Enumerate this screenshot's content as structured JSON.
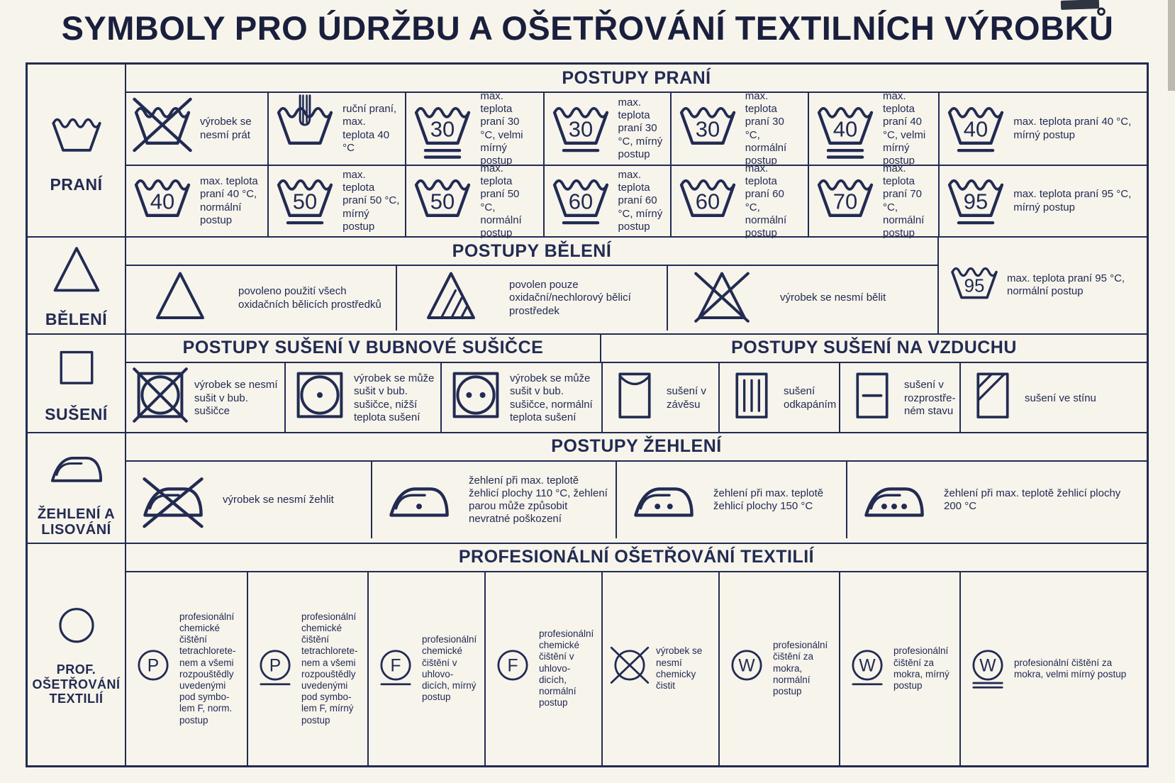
{
  "title": "SYMBOLY PRO ÚDRŽBU A OŠETŘOVÁNÍ TEXTILNÍCH VÝROBKŮ",
  "ink_color": "#222b52",
  "paper_color": "#f7f4ec",
  "categories": [
    {
      "label": "PRANÍ",
      "icon": "wash-tub-icon",
      "symbol": {
        "type": "tub"
      }
    },
    {
      "label": "BĚLENÍ",
      "icon": "triangle-icon",
      "symbol": {
        "type": "triangle",
        "variant": "plain"
      }
    },
    {
      "label": "SUŠENÍ",
      "icon": "square-icon",
      "symbol": {
        "type": "square",
        "variant": "plain"
      }
    },
    {
      "label": "ŽEHLENÍ A LISOVÁNÍ",
      "icon": "iron-icon",
      "symbol": {
        "type": "iron",
        "dots": 0
      }
    },
    {
      "label": "PROF. OŠETŘOVÁNÍ TEXTILIÍ",
      "icon": "circle-icon",
      "symbol": {
        "type": "circle"
      }
    }
  ],
  "washing": {
    "header": "POSTUPY PRANÍ",
    "rows": [
      [
        {
          "icon": "do-not-wash-icon",
          "symbol": {
            "type": "tub",
            "crossed": true
          },
          "text": "výrobek se nesmí prát"
        },
        {
          "icon": "hand-wash-icon",
          "symbol": {
            "type": "tub",
            "hand": true
          },
          "text": "ruční praní, max. teplota 40 °C"
        },
        {
          "icon": "wash-30-very-mild-icon",
          "symbol": {
            "type": "tub",
            "temp": "30",
            "bars": 2
          },
          "text": "max. teplota praní 30 °C, velmi mírný postup"
        },
        {
          "icon": "wash-30-mild-icon",
          "symbol": {
            "type": "tub",
            "temp": "30",
            "bars": 1
          },
          "text": "max. teplota praní 30 °C, mírný postup"
        },
        {
          "icon": "wash-30-normal-icon",
          "symbol": {
            "type": "tub",
            "temp": "30",
            "bars": 0
          },
          "text": "max. teplota praní 30 °C, normální postup"
        },
        {
          "icon": "wash-40-very-mild-icon",
          "symbol": {
            "type": "tub",
            "temp": "40",
            "bars": 2
          },
          "text": "max. teplota praní 40 °C, velmi mírný postup"
        },
        {
          "icon": "wash-40-mild-icon",
          "symbol": {
            "type": "tub",
            "temp": "40",
            "bars": 1
          },
          "text": "max. teplota praní 40 °C, mírný postup"
        }
      ],
      [
        {
          "icon": "wash-40-normal-icon",
          "symbol": {
            "type": "tub",
            "temp": "40",
            "bars": 0
          },
          "text": "max. teplota praní 40 °C, normální postup"
        },
        {
          "icon": "wash-50-mild-icon",
          "symbol": {
            "type": "tub",
            "temp": "50",
            "bars": 1
          },
          "text": "max. teplota praní 50 °C, mírný postup"
        },
        {
          "icon": "wash-50-normal-icon",
          "symbol": {
            "type": "tub",
            "temp": "50",
            "bars": 0
          },
          "text": "max. teplota praní 50 °C, normální postup"
        },
        {
          "icon": "wash-60-mild-icon",
          "symbol": {
            "type": "tub",
            "temp": "60",
            "bars": 1
          },
          "text": "max. teplota praní 60 °C, mírný postup"
        },
        {
          "icon": "wash-60-normal-icon",
          "symbol": {
            "type": "tub",
            "temp": "60",
            "bars": 0
          },
          "text": "max. teplota praní 60 °C, normální postup"
        },
        {
          "icon": "wash-70-normal-icon",
          "symbol": {
            "type": "tub",
            "temp": "70",
            "bars": 0
          },
          "text": "max. teplota praní 70 °C, normální postup"
        },
        {
          "icon": "wash-95-mild-icon",
          "symbol": {
            "type": "tub",
            "temp": "95",
            "bars": 1
          },
          "text": "max. teplota praní 95 °C, mírný postup"
        }
      ]
    ]
  },
  "bleaching": {
    "header": "POSTUPY BĚLENÍ",
    "cells": [
      {
        "icon": "bleach-allowed-icon",
        "symbol": {
          "type": "triangle",
          "variant": "plain"
        },
        "text": "povoleno použití všech oxidačních bělicích prostředků"
      },
      {
        "icon": "oxygen-bleach-only-icon",
        "symbol": {
          "type": "triangle",
          "variant": "hatched"
        },
        "text": "povolen pouze oxidační/nechlorový bělicí prostředek"
      },
      {
        "icon": "do-not-bleach-icon",
        "symbol": {
          "type": "triangle",
          "variant": "crossed"
        },
        "text": "výrobek se nesmí bělit"
      }
    ],
    "side_cell": {
      "icon": "wash-95-normal-icon",
      "symbol": {
        "type": "tub",
        "temp": "95",
        "bars": 0
      },
      "text": "max. teplota praní 95 °C, normální postup"
    }
  },
  "drying": {
    "header_tumble": "POSTUPY SUŠENÍ V BUBNOVÉ SUŠIČCE",
    "header_air": "POSTUPY SUŠENÍ NA VZDUCHU",
    "tumble_cells": [
      {
        "icon": "do-not-tumble-dry-icon",
        "symbol": {
          "type": "square-circle",
          "crossed": true
        },
        "text": "výrobek se nesmí sušit v bub. sušičce"
      },
      {
        "icon": "tumble-dry-low-heat-icon",
        "symbol": {
          "type": "square-circle",
          "dots": 1
        },
        "text": "výrobek se může sušit v bub. sušičce, nižší teplota sušení"
      },
      {
        "icon": "tumble-dry-normal-heat-icon",
        "symbol": {
          "type": "square-circle",
          "dots": 2
        },
        "text": "výrobek se může sušit v bub. sušičce, normální teplota sušení"
      }
    ],
    "air_cells": [
      {
        "icon": "line-dry-icon",
        "symbol": {
          "type": "square",
          "variant": "hang"
        },
        "text": "sušení v závěsu"
      },
      {
        "icon": "drip-dry-icon",
        "symbol": {
          "type": "square",
          "variant": "drip"
        },
        "text": "sušení odkapáním"
      },
      {
        "icon": "dry-flat-icon",
        "symbol": {
          "type": "square",
          "variant": "flat"
        },
        "text": "sušení v rozprostře-ném stavu"
      },
      {
        "icon": "dry-in-shade-icon",
        "symbol": {
          "type": "square",
          "variant": "shade"
        },
        "text": "sušení ve stínu"
      }
    ]
  },
  "ironing": {
    "header": "POSTUPY ŽEHLENÍ",
    "cells": [
      {
        "icon": "do-not-iron-icon",
        "symbol": {
          "type": "iron",
          "crossed": true
        },
        "text": "výrobek se nesmí žehlit"
      },
      {
        "icon": "iron-110-icon",
        "symbol": {
          "type": "iron",
          "dots": 1
        },
        "text": "žehlení při max. teplotě žehlicí plochy 110 °C, žehlení parou může způsobit nevratné poškození"
      },
      {
        "icon": "iron-150-icon",
        "symbol": {
          "type": "iron",
          "dots": 2
        },
        "text": "žehlení při max. teplotě žehlicí plochy 150 °C"
      },
      {
        "icon": "iron-200-icon",
        "symbol": {
          "type": "iron",
          "dots": 3
        },
        "text": "žehlení při max. teplotě žehlicí plochy 200 °C"
      }
    ]
  },
  "professional": {
    "header": "PROFESIONÁLNÍ OŠETŘOVÁNÍ TEXTILIÍ",
    "cells": [
      {
        "icon": "dry-clean-P-normal-icon",
        "symbol": {
          "type": "circle",
          "letter": "P",
          "bars": 0
        },
        "text": "profesionální chemické čištění tetrachlorete-nem a všemi rozpouštědly uvedenými pod symbo-lem F, norm. postup"
      },
      {
        "icon": "dry-clean-P-mild-icon",
        "symbol": {
          "type": "circle",
          "letter": "P",
          "bars": 1
        },
        "text": "profesionální chemické čištění tetrachlorete-nem a všemi rozpouštědly uvedenými pod symbo-lem F, mírný postup"
      },
      {
        "icon": "dry-clean-F-mild-icon",
        "symbol": {
          "type": "circle",
          "letter": "F",
          "bars": 1
        },
        "text": "profesionální chemické čištění v uhlovo-dicích, mírný postup"
      },
      {
        "icon": "dry-clean-F-normal-icon",
        "symbol": {
          "type": "circle",
          "letter": "F",
          "bars": 0
        },
        "text": "profesionální chemické čištění v uhlovo-dicích, normální postup"
      },
      {
        "icon": "do-not-dry-clean-icon",
        "symbol": {
          "type": "circle",
          "crossed": true
        },
        "text": "výrobek se nesmí chemicky čistit"
      },
      {
        "icon": "wet-clean-normal-icon",
        "symbol": {
          "type": "circle",
          "letter": "W",
          "bars": 0
        },
        "text": "profesionální čištění za mokra, normální postup"
      },
      {
        "icon": "wet-clean-mild-icon",
        "symbol": {
          "type": "circle",
          "letter": "W",
          "bars": 1
        },
        "text": "profesionální čištění za mokra, mírný postup"
      },
      {
        "icon": "wet-clean-very-mild-icon",
        "symbol": {
          "type": "circle",
          "letter": "W",
          "bars": 2
        },
        "text": "profesionální čištění za mokra, velmi mírný postup"
      }
    ]
  }
}
